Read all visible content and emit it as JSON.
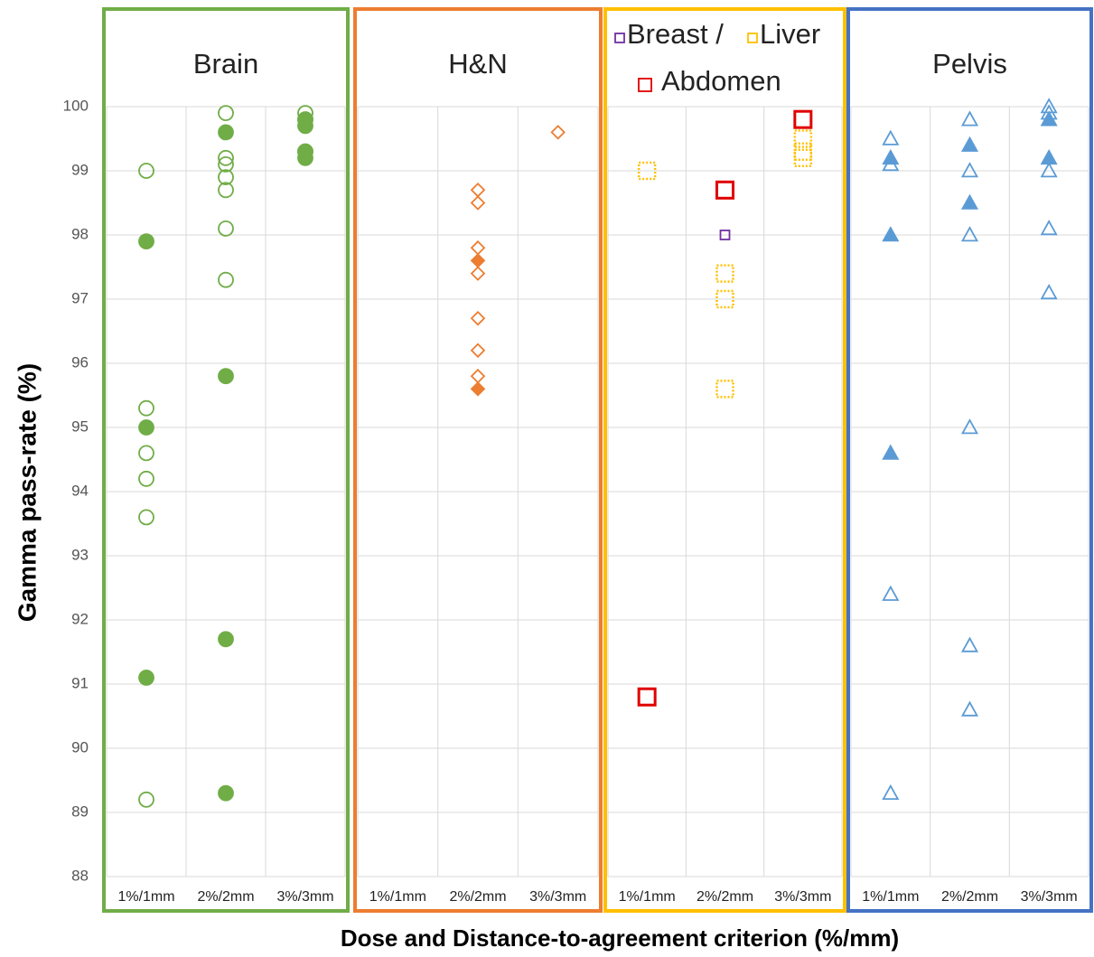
{
  "y_label": "Gamma pass-rate (%)",
  "x_label": "Dose and Distance-to-agreement criterion (%/mm)",
  "ylim": [
    88,
    100
  ],
  "yticks": [
    88,
    89,
    90,
    91,
    92,
    93,
    94,
    95,
    96,
    97,
    98,
    99,
    100
  ],
  "grid": true,
  "chart_data": [
    {
      "type": "scatter",
      "title": "Brain",
      "border_color": "#70ad47",
      "categories": [
        "1%/1mm",
        "2%/2mm",
        "3%/3mm"
      ],
      "series": [
        {
          "color": "#70ad47",
          "marker": "circle",
          "filled": false,
          "x": [
            "1%/1mm",
            "1%/1mm",
            "1%/1mm",
            "1%/1mm",
            "1%/1mm",
            "1%/1mm",
            "2%/2mm",
            "2%/2mm",
            "2%/2mm",
            "2%/2mm",
            "2%/2mm",
            "2%/2mm",
            "2%/2mm",
            "3%/3mm",
            "3%/3mm",
            "3%/3mm"
          ],
          "values": [
            99.0,
            95.3,
            94.6,
            94.2,
            93.6,
            89.2,
            99.9,
            99.2,
            99.1,
            98.9,
            98.7,
            98.1,
            97.3,
            99.9,
            99.8,
            99.3
          ]
        },
        {
          "color": "#70ad47",
          "marker": "circle",
          "filled": true,
          "x": [
            "1%/1mm",
            "1%/1mm",
            "1%/1mm",
            "2%/2mm",
            "2%/2mm",
            "2%/2mm",
            "2%/2mm",
            "3%/3mm",
            "3%/3mm",
            "3%/3mm",
            "3%/3mm"
          ],
          "values": [
            97.9,
            95.0,
            91.1,
            99.6,
            95.8,
            91.7,
            89.3,
            99.7,
            99.8,
            99.3,
            99.2
          ]
        }
      ]
    },
    {
      "type": "scatter",
      "title": "H&N",
      "border_color": "#ed7d31",
      "categories": [
        "1%/1mm",
        "2%/2mm",
        "3%/3mm"
      ],
      "series": [
        {
          "color": "#ed7d31",
          "marker": "diamond",
          "filled": false,
          "x": [
            "2%/2mm",
            "2%/2mm",
            "2%/2mm",
            "2%/2mm",
            "2%/2mm",
            "2%/2mm",
            "2%/2mm",
            "3%/3mm"
          ],
          "values": [
            98.7,
            98.5,
            97.8,
            97.4,
            96.7,
            96.2,
            95.8,
            99.6
          ]
        },
        {
          "color": "#ed7d31",
          "marker": "diamond",
          "filled": true,
          "x": [
            "2%/2mm",
            "2%/2mm"
          ],
          "values": [
            97.6,
            95.6
          ]
        }
      ]
    },
    {
      "type": "scatter",
      "border_color": "#ffc000",
      "categories": [
        "1%/1mm",
        "2%/2mm",
        "3%/3mm"
      ],
      "series": [
        {
          "name": "Breast /",
          "color": "#7030a0",
          "marker": "square",
          "filled": false,
          "x": [
            "2%/2mm"
          ],
          "values": [
            98.0
          ]
        },
        {
          "name": "Liver",
          "color": "#ffc000",
          "marker": "square",
          "filled": false,
          "dotted": true,
          "x": [
            "1%/1mm",
            "2%/2mm",
            "2%/2mm",
            "2%/2mm",
            "3%/3mm",
            "3%/3mm",
            "3%/3mm"
          ],
          "values": [
            99.0,
            97.4,
            97.0,
            95.6,
            99.5,
            99.3,
            99.2
          ]
        },
        {
          "name": "Abdomen",
          "color": "#e00000",
          "marker": "square",
          "filled": false,
          "x": [
            "1%/1mm",
            "2%/2mm",
            "3%/3mm"
          ],
          "values": [
            90.8,
            98.7,
            99.8
          ]
        }
      ]
    },
    {
      "type": "scatter",
      "title": "Pelvis",
      "border_color": "#4472c4",
      "categories": [
        "1%/1mm",
        "2%/2mm",
        "3%/3mm"
      ],
      "series": [
        {
          "color": "#5b9bd5",
          "marker": "triangle",
          "filled": false,
          "x": [
            "1%/1mm",
            "1%/1mm",
            "1%/1mm",
            "1%/1mm",
            "2%/2mm",
            "2%/2mm",
            "2%/2mm",
            "2%/2mm",
            "2%/2mm",
            "2%/2mm",
            "3%/3mm",
            "3%/3mm",
            "3%/3mm",
            "3%/3mm",
            "3%/3mm"
          ],
          "values": [
            99.5,
            99.1,
            92.4,
            89.3,
            99.8,
            99.0,
            98.0,
            95.0,
            91.6,
            90.6,
            100.0,
            99.9,
            99.0,
            98.1,
            97.1
          ]
        },
        {
          "color": "#5b9bd5",
          "marker": "triangle",
          "filled": true,
          "x": [
            "1%/1mm",
            "1%/1mm",
            "1%/1mm",
            "2%/2mm",
            "2%/2mm",
            "3%/3mm",
            "3%/3mm"
          ],
          "values": [
            99.2,
            98.0,
            94.6,
            99.4,
            98.5,
            99.8,
            99.2
          ]
        }
      ]
    }
  ]
}
